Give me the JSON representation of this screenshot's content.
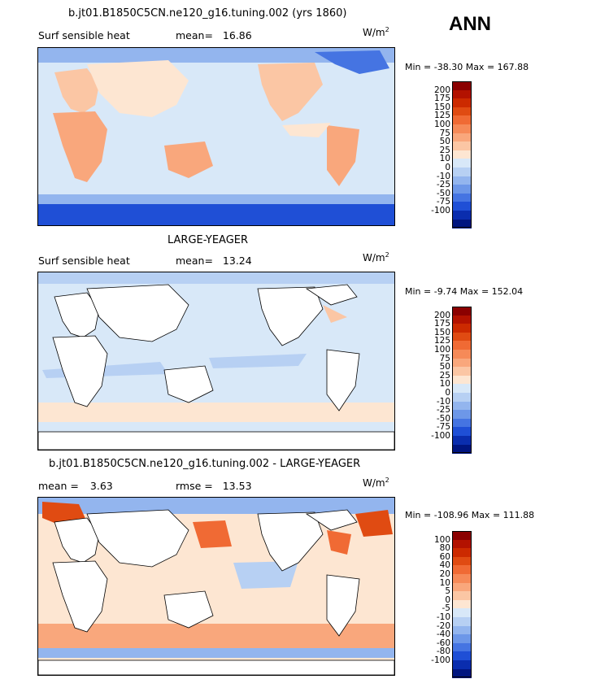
{
  "header": {
    "season": "ANN"
  },
  "panels": [
    {
      "id": "top",
      "title": "b.jt01.B1850C5CN.ne120_g16.tuning.002 (yrs 1860)",
      "left_label": "Surf sensible heat",
      "stat_label": "mean=",
      "stat_value": "16.86",
      "units": "W/m",
      "units_sup": "2",
      "min_label": "Min =",
      "min_value": "-38.30",
      "max_label": "Max =",
      "max_value": "167.88",
      "colorbar": {
        "ticks": [
          "200",
          "175",
          "150",
          "125",
          "100",
          "75",
          "50",
          "25",
          "10",
          "0",
          "-10",
          "-25",
          "-50",
          "-75",
          "-100"
        ],
        "colors": [
          "#8b0000",
          "#b31200",
          "#cc2a00",
          "#e04b12",
          "#f06a34",
          "#f68a58",
          "#f9a77c",
          "#fbc6a4",
          "#fde6d2",
          "#d8e8f8",
          "#b7d0f3",
          "#93b5ee",
          "#6d97e8",
          "#4574e2",
          "#1f4fd6",
          "#0a2dae",
          "#001580"
        ]
      }
    },
    {
      "id": "middle",
      "title": "LARGE-YEAGER",
      "left_label": "Surf sensible heat",
      "stat_label": "mean=",
      "stat_value": "13.24",
      "units": "W/m",
      "units_sup": "2",
      "min_label": "Min =",
      "min_value": "-9.74",
      "max_label": "Max =",
      "max_value": "152.04",
      "colorbar": {
        "ticks": [
          "200",
          "175",
          "150",
          "125",
          "100",
          "75",
          "50",
          "25",
          "10",
          "0",
          "-10",
          "-25",
          "-50",
          "-75",
          "-100"
        ],
        "colors": [
          "#8b0000",
          "#b31200",
          "#cc2a00",
          "#e04b12",
          "#f06a34",
          "#f68a58",
          "#f9a77c",
          "#fbc6a4",
          "#fde6d2",
          "#d8e8f8",
          "#b7d0f3",
          "#93b5ee",
          "#6d97e8",
          "#4574e2",
          "#1f4fd6",
          "#0a2dae",
          "#001580"
        ]
      }
    },
    {
      "id": "bottom",
      "title": "b.jt01.B1850C5CN.ne120_g16.tuning.002 - LARGE-YEAGER",
      "left_label": "mean =",
      "left_value": "3.63",
      "stat_label": "rmse =",
      "stat_value": "13.53",
      "units": "W/m",
      "units_sup": "2",
      "min_label": "Min =",
      "min_value": "-108.96",
      "max_label": "Max =",
      "max_value": "111.88",
      "colorbar": {
        "ticks": [
          "100",
          "80",
          "60",
          "40",
          "20",
          "10",
          "5",
          "0",
          "-5",
          "-10",
          "-20",
          "-40",
          "-60",
          "-80",
          "-100"
        ],
        "colors": [
          "#8b0000",
          "#b31200",
          "#cc2a00",
          "#e04b12",
          "#f06a34",
          "#f68a58",
          "#f9a77c",
          "#fbc6a4",
          "#fde6d2",
          "#d8e8f8",
          "#b7d0f3",
          "#93b5ee",
          "#6d97e8",
          "#4574e2",
          "#1f4fd6",
          "#0a2dae",
          "#001580"
        ]
      }
    }
  ]
}
